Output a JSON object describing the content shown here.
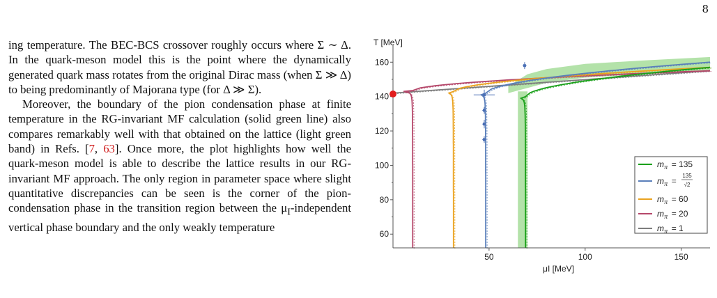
{
  "page_number": "8",
  "paragraph1": "ing temperature. The BEC-BCS crossover roughly occurs where Σ ∼ Δ. In the quark-meson model this is the point where the dynamically generated quark mass rotates from the original Dirac mass (when Σ ≫ Δ) to being predominantly of Majorana type (for Δ ≫ Σ).",
  "paragraph2": {
    "part1": "Moreover, the boundary of the pion condensation phase at finite temperature in the RG-invariant MF calculation (solid green line) also compares remarkably well with that obtained on the lattice (light green band) in Refs. [",
    "ref1": "7",
    "sep": ", ",
    "ref2": "63",
    "part2": "]. Once more, the plot highlights how well the quark-meson model is able to describe the lattice results in our RG-invariant MF approach. The only region in parameter space where slight quantitative discrepancies can be seen is the corner of the pion-condensation phase in the transition region between the μ",
    "sub": "I",
    "part3": "-independent vertical phase boundary and the only weakly temperature"
  },
  "chart_data": {
    "type": "line",
    "ylabel": "T [MeV]",
    "xlabel": "μI [MeV]",
    "xlim": [
      0,
      165
    ],
    "ylim": [
      52,
      167
    ],
    "x_ticks": [
      50,
      100,
      150
    ],
    "y_ticks": [
      60,
      80,
      100,
      120,
      140,
      160
    ],
    "grid": false,
    "legend_position": "right",
    "series": [
      {
        "name": "mπ = 135",
        "label_prefix": "m",
        "label_sub": "π",
        "label_value": "= 135",
        "color": "#1aa01a",
        "vertical_x": 69,
        "turn_T": 140,
        "T_end": 157
      },
      {
        "name": "mπ = 135/√2",
        "label_prefix": "m",
        "label_sub": "π",
        "label_value": "=",
        "label_numerator": "135",
        "label_denominator": "√2",
        "color": "#5a7fba",
        "vertical_x": 48.3,
        "turn_T": 142,
        "T_end": 160
      },
      {
        "name": "mπ = 60",
        "label_prefix": "m",
        "label_sub": "π",
        "label_value": "= 60",
        "color": "#eaa21f",
        "vertical_x": 31.5,
        "turn_T": 143,
        "T_end": 157
      },
      {
        "name": "mπ = 20",
        "label_prefix": "m",
        "label_sub": "π",
        "label_value": "= 20",
        "color": "#b5476a",
        "vertical_x": 10.3,
        "turn_T": 143.5,
        "T_end": 155
      },
      {
        "name": "mπ = 1",
        "label_prefix": "m",
        "label_sub": "π",
        "label_value": "= 1",
        "color": "#7d7d7d",
        "vertical_x": 0.5,
        "turn_T": 142,
        "T_end": 155
      }
    ],
    "lattice_band": {
      "color": "#9ad88c",
      "vertical_x": [
        65,
        70
      ],
      "vertical_T": [
        52,
        143
      ],
      "upper": [
        [
          60,
          146
        ],
        [
          70,
          153
        ],
        [
          80,
          156
        ],
        [
          100,
          159
        ],
        [
          130,
          161
        ],
        [
          165,
          163
        ]
      ],
      "lower": [
        [
          60,
          142
        ],
        [
          70,
          145
        ],
        [
          80,
          148
        ],
        [
          100,
          151
        ],
        [
          130,
          153
        ],
        [
          165,
          155
        ]
      ]
    },
    "lattice_points": [
      {
        "x": 68.5,
        "T": 158,
        "xerr": 1.0,
        "Terr": 2.0
      },
      {
        "x": 47.5,
        "T": 141,
        "xerr": 5.5,
        "Terr": 3.0
      },
      {
        "x": 47.5,
        "T": 132,
        "xerr": 1.0,
        "Terr": 2.0
      },
      {
        "x": 47.5,
        "T": 124,
        "xerr": 1.0,
        "Terr": 2.5
      },
      {
        "x": 47.5,
        "T": 115,
        "xerr": 1.0,
        "Terr": 2.0
      }
    ],
    "marker": {
      "x": 0,
      "T": 141.5,
      "color": "#e21c1c"
    }
  }
}
